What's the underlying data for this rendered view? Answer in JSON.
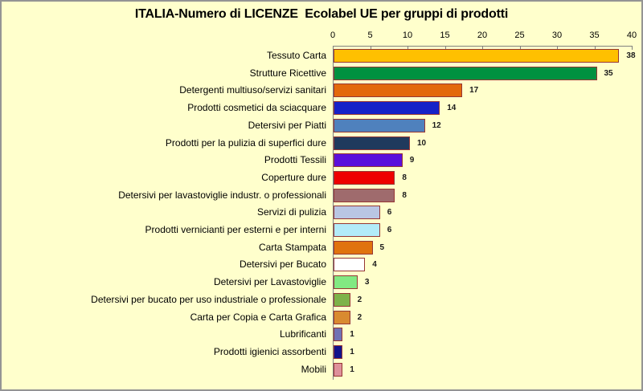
{
  "chart_data": {
    "type": "bar",
    "orientation": "horizontal",
    "title": "ITALIA-Numero di LICENZE  Ecolabel UE per gruppi di prodotti",
    "xlabel": "",
    "ylabel": "",
    "xlim": [
      0,
      40
    ],
    "x_ticks": [
      0,
      5,
      10,
      15,
      20,
      25,
      30,
      35,
      40
    ],
    "grid": false,
    "legend": false,
    "value_label_position": "outside-end",
    "categories": [
      "Tessuto Carta",
      "Strutture Ricettive",
      "Detergenti multiuso/servizi sanitari",
      "Prodotti cosmetici da sciacquare",
      "Detersivi per Piatti",
      "Prodotti per la pulizia di superfici dure",
      "Prodotti Tessili",
      "Coperture dure",
      "Detersivi per lavastoviglie industr. o professionali",
      "Servizi di pulizia",
      "Prodotti vernicianti per esterni e per interni",
      "Carta Stampata",
      "Detersivi per Bucato",
      "Detersivi per Lavastoviglie",
      "Detersivi per bucato per uso industriale o professionale",
      "Carta per Copia e  Carta Grafica",
      "Lubrificanti",
      "Prodotti igienici assorbenti",
      "Mobili"
    ],
    "values": [
      38,
      35,
      17,
      14,
      12,
      10,
      9,
      8,
      8,
      6,
      6,
      5,
      4,
      3,
      2,
      2,
      1,
      1,
      1
    ],
    "bar_colors": [
      "#FFC000",
      "#009140",
      "#E3690C",
      "#1522C8",
      "#4F81BD",
      "#1F3A5D",
      "#5A10DB",
      "#EE0000",
      "#9F6B6D",
      "#B9C6E3",
      "#B2EBF9",
      "#E0730E",
      "#FFFFFF",
      "#82E982",
      "#7DB249",
      "#D98A30",
      "#7072B4",
      "#12148B",
      "#DE919B"
    ],
    "colors": {
      "background": "#FFFFCC",
      "frame_border": "#949494",
      "bar_border": "#963634",
      "axis_line": "#808080",
      "text": "#000000",
      "value_text": "#1a1a1a"
    }
  }
}
